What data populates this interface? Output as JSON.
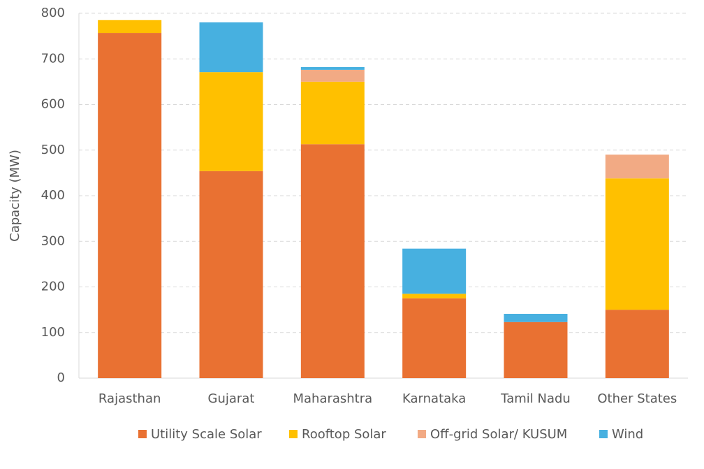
{
  "chart_data": {
    "type": "stacked_bar",
    "y_label": "Capacity (MW)",
    "categories": [
      "Rajasthan",
      "Gujarat",
      "Maharashtra",
      "Karnataka",
      "Tamil Nadu",
      "Other States"
    ],
    "series": [
      {
        "name": "Utility Scale Solar",
        "color": "#E97132",
        "values": [
          757,
          454,
          513,
          175,
          123,
          150
        ]
      },
      {
        "name": "Rooftop Solar",
        "color": "#FFC000",
        "values": [
          28,
          217,
          137,
          10,
          0,
          288
        ]
      },
      {
        "name": "Off-grid Solar/ KUSUM",
        "color": "#F2AA84",
        "values": [
          0,
          0,
          26,
          0,
          0,
          52
        ]
      },
      {
        "name": "Wind",
        "color": "#47B0E0",
        "values": [
          0,
          109,
          6,
          99,
          18,
          0
        ]
      }
    ],
    "ylim": [
      0,
      800
    ],
    "yticks": [
      0,
      100,
      200,
      300,
      400,
      500,
      600,
      700,
      800
    ],
    "grid": true
  }
}
